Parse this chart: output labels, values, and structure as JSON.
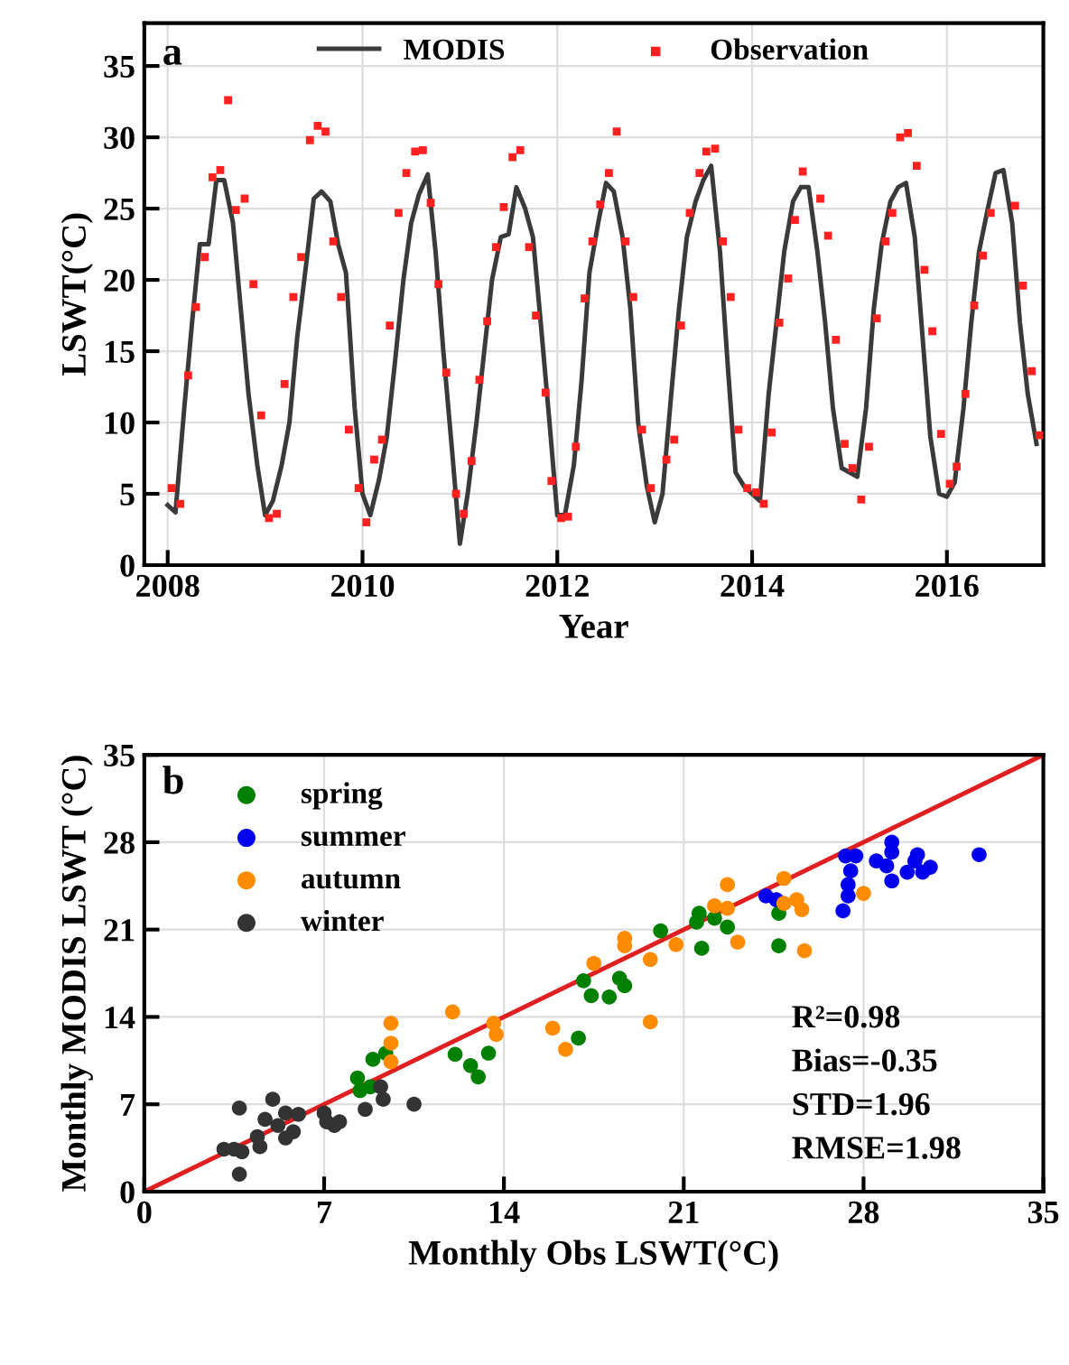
{
  "chart_data": [
    {
      "type": "line",
      "xlabel": "Year",
      "ylabel": "LSWT(°C)",
      "annotations": [
        "a"
      ],
      "xlim": [
        2007.76,
        2016.99
      ],
      "xticks": [
        2008,
        2010,
        2012,
        2014,
        2016
      ],
      "ylim": [
        0,
        38
      ],
      "yticks": [
        0,
        5,
        10,
        15,
        20,
        25,
        30,
        35
      ],
      "grid": true,
      "legend": "top",
      "series": [
        {
          "name": "MODIS",
          "type": "line",
          "color": "#3a3a3a",
          "marker": "none",
          "line_style": "solid",
          "x": [
            2008.0,
            2008.08,
            2008.17,
            2008.25,
            2008.33,
            2008.42,
            2008.5,
            2008.58,
            2008.67,
            2008.75,
            2008.83,
            2008.92,
            2009.0,
            2009.08,
            2009.17,
            2009.25,
            2009.33,
            2009.42,
            2009.5,
            2009.58,
            2009.67,
            2009.75,
            2009.83,
            2009.92,
            2010.0,
            2010.08,
            2010.17,
            2010.25,
            2010.33,
            2010.42,
            2010.5,
            2010.58,
            2010.67,
            2010.75,
            2010.83,
            2010.92,
            2011.0,
            2011.08,
            2011.17,
            2011.25,
            2011.33,
            2011.42,
            2011.5,
            2011.58,
            2011.67,
            2011.75,
            2011.83,
            2011.92,
            2012.0,
            2012.08,
            2012.17,
            2012.25,
            2012.33,
            2012.42,
            2012.5,
            2012.58,
            2012.67,
            2012.75,
            2012.83,
            2012.92,
            2013.0,
            2013.08,
            2013.17,
            2013.25,
            2013.33,
            2013.42,
            2013.5,
            2013.58,
            2013.67,
            2013.75,
            2013.83,
            2013.92,
            2014.0,
            2014.08,
            2014.17,
            2014.25,
            2014.33,
            2014.42,
            2014.5,
            2014.58,
            2014.67,
            2014.75,
            2014.83,
            2014.92,
            2015.0,
            2015.08,
            2015.17,
            2015.25,
            2015.33,
            2015.42,
            2015.5,
            2015.58,
            2015.67,
            2015.75,
            2015.83,
            2015.92,
            2016.0,
            2016.08,
            2016.17,
            2016.25,
            2016.33,
            2016.42,
            2016.5,
            2016.58,
            2016.67,
            2016.75,
            2016.83,
            2016.92
          ],
          "values": [
            4.2,
            3.7,
            11,
            17,
            22.5,
            22.5,
            27,
            27,
            24,
            18,
            12,
            7,
            3.5,
            4.5,
            7,
            10,
            16,
            21,
            25.7,
            26.2,
            25.5,
            22.5,
            20.5,
            11,
            5,
            3.5,
            6,
            9,
            14,
            20,
            24,
            26,
            27.4,
            22,
            15,
            8,
            1.5,
            5,
            10,
            15,
            20,
            23,
            23.2,
            26.5,
            25,
            23,
            17,
            10,
            3.5,
            3.6,
            7,
            13,
            20.5,
            24,
            26.8,
            26.2,
            23,
            18,
            10,
            5.5,
            3,
            5,
            12,
            18,
            23,
            25.5,
            27,
            28,
            22,
            14,
            6.5,
            5.5,
            5,
            4.5,
            12,
            17,
            22,
            25.5,
            26.5,
            26.5,
            22,
            17,
            11,
            6.8,
            6.5,
            6.2,
            11,
            18,
            22.5,
            25.5,
            26.5,
            26.8,
            23,
            16,
            9,
            5,
            4.8,
            5.8,
            11,
            17,
            22,
            25,
            27.5,
            27.7,
            24,
            17,
            12,
            8.5
          ]
        },
        {
          "name": "Observation",
          "type": "scatter",
          "color": "#ff2020",
          "marker": "square",
          "x": [
            2008.04,
            2008.13,
            2008.21,
            2008.29,
            2008.38,
            2008.46,
            2008.54,
            2008.62,
            2008.7,
            2008.79,
            2008.88,
            2008.96,
            2009.04,
            2009.12,
            2009.2,
            2009.29,
            2009.37,
            2009.46,
            2009.54,
            2009.62,
            2009.7,
            2009.78,
            2009.86,
            2009.96,
            2010.04,
            2010.12,
            2010.2,
            2010.28,
            2010.37,
            2010.45,
            2010.54,
            2010.62,
            2010.7,
            2010.78,
            2010.86,
            2010.96,
            2011.04,
            2011.12,
            2011.2,
            2011.28,
            2011.37,
            2011.45,
            2011.54,
            2011.62,
            2011.71,
            2011.78,
            2011.88,
            2011.94,
            2012.04,
            2012.11,
            2012.19,
            2012.28,
            2012.36,
            2012.44,
            2012.53,
            2012.61,
            2012.7,
            2012.78,
            2012.87,
            2012.96,
            2013.12,
            2013.2,
            2013.27,
            2013.36,
            2013.46,
            2013.53,
            2013.62,
            2013.7,
            2013.78,
            2013.86,
            2013.95,
            2014.04,
            2014.12,
            2014.2,
            2014.28,
            2014.37,
            2014.44,
            2014.52,
            2014.7,
            2014.78,
            2014.86,
            2014.95,
            2015.03,
            2015.12,
            2015.2,
            2015.28,
            2015.37,
            2015.44,
            2015.52,
            2015.6,
            2015.69,
            2015.77,
            2015.85,
            2015.94,
            2016.03,
            2016.1,
            2016.19,
            2016.28,
            2016.37,
            2016.45,
            2016.7,
            2016.78,
            2016.87,
            2016.95
          ],
          "values": [
            5.4,
            4.3,
            13.3,
            18.1,
            21.6,
            27.2,
            27.7,
            32.6,
            24.9,
            25.7,
            19.7,
            10.5,
            3.3,
            3.6,
            12.7,
            18.8,
            21.6,
            29.8,
            30.8,
            30.4,
            22.7,
            18.8,
            9.5,
            5.4,
            3.0,
            7.4,
            8.8,
            16.8,
            24.7,
            27.5,
            29,
            29.1,
            25.4,
            19.7,
            13.5,
            5,
            3.6,
            7.3,
            13,
            17.1,
            22.3,
            25.1,
            28.6,
            29.1,
            22.3,
            17.5,
            12.1,
            5.9,
            3.3,
            3.4,
            8.3,
            18.7,
            22.7,
            25.3,
            27.5,
            30.4,
            22.7,
            18.8,
            9.5,
            5.4,
            7.4,
            8.8,
            16.8,
            24.7,
            27.5,
            29,
            29.2,
            22.7,
            18.8,
            9.5,
            5.4,
            5.1,
            4.3,
            9.3,
            17,
            20.1,
            24.2,
            27.6,
            25.7,
            23.1,
            15.8,
            8.5,
            6.8,
            4.6,
            8.3,
            17.3,
            22.7,
            24.7,
            30,
            30.3,
            28,
            20.7,
            16.4,
            9.2,
            5.7,
            6.9,
            12,
            18.2,
            21.7,
            24.7,
            25.2,
            19.6,
            13.6,
            9.1
          ]
        }
      ]
    },
    {
      "type": "scatter",
      "xlabel": "Monthly Obs LSWT(°C)",
      "ylabel": "Monthly MODIS LSWT (°C)",
      "annotations": [
        "b",
        "R²=0.98",
        "Bias=-0.35",
        "STD=1.96",
        "RMSE=1.98"
      ],
      "xlim": [
        0,
        35
      ],
      "xticks": [
        0,
        7,
        14,
        21,
        28,
        35
      ],
      "ylim": [
        0,
        35
      ],
      "yticks": [
        0,
        7,
        14,
        21,
        28,
        35
      ],
      "grid": true,
      "legend": "top left",
      "marker": "circle",
      "series": [
        {
          "type": "line",
          "color": "#e02020",
          "marker": "none",
          "line_style": "solid",
          "x": [
            0,
            35
          ],
          "values": [
            0,
            35
          ]
        },
        {
          "name": "spring",
          "color": "#008000",
          "x": [
            8.3,
            8.4,
            8.8,
            8.9,
            9.4,
            12.1,
            12.7,
            13.0,
            13.4,
            16.9,
            17.1,
            17.4,
            18.1,
            18.5,
            18.7,
            20.1,
            21.6,
            21.5,
            21.7,
            22.2,
            22.7,
            24.7,
            24.7
          ],
          "values": [
            9.1,
            8.1,
            8.4,
            10.6,
            11.1,
            11.0,
            10.1,
            9.2,
            11.1,
            12.3,
            16.9,
            15.7,
            15.6,
            17.1,
            16.5,
            20.9,
            22.3,
            21.6,
            19.5,
            21.9,
            21.2,
            22.3,
            19.7
          ]
        },
        {
          "name": "summer",
          "color": "#0000ee",
          "x": [
            24.2,
            24.6,
            27.2,
            27.4,
            27.4,
            27.5,
            27.3,
            27.7,
            28.5,
            28.9,
            29.1,
            29.1,
            29.1,
            29.7,
            30.0,
            30.1,
            30.3,
            30.6,
            32.5
          ],
          "values": [
            23.7,
            23.4,
            22.5,
            23.7,
            24.6,
            25.7,
            26.9,
            26.9,
            26.5,
            26.1,
            28.0,
            27.2,
            24.9,
            25.6,
            26.5,
            27.0,
            25.6,
            26.0,
            27.0
          ]
        },
        {
          "name": "autumn",
          "color": "#ff8c00",
          "x": [
            9.6,
            9.6,
            9.6,
            12.0,
            13.6,
            13.7,
            15.9,
            16.4,
            17.5,
            18.7,
            18.7,
            19.7,
            19.7,
            20.7,
            22.2,
            22.7,
            22.7,
            23.1,
            24.9,
            24.9,
            25.4,
            25.6,
            25.7,
            28.0
          ],
          "values": [
            13.5,
            11.9,
            10.4,
            14.4,
            13.5,
            12.6,
            13.1,
            11.4,
            18.3,
            20.3,
            19.7,
            18.6,
            13.6,
            19.8,
            22.9,
            24.6,
            22.7,
            20.0,
            25.1,
            23.1,
            23.4,
            22.6,
            19.3,
            23.9
          ]
        },
        {
          "name": "winter",
          "color": "#333333",
          "x": [
            3.1,
            3.5,
            3.8,
            3.7,
            3.7,
            4.4,
            4.5,
            4.7,
            5.0,
            5.2,
            5.5,
            5.5,
            5.8,
            6.0,
            7.0,
            7.1,
            7.4,
            7.6,
            8.6,
            9.2,
            9.3,
            10.5
          ],
          "values": [
            3.4,
            3.4,
            3.2,
            6.7,
            1.4,
            4.4,
            3.6,
            5.8,
            7.4,
            5.3,
            4.3,
            6.3,
            4.8,
            6.2,
            6.3,
            5.6,
            5.3,
            5.6,
            6.6,
            8.4,
            7.4,
            7.0
          ]
        }
      ]
    }
  ]
}
